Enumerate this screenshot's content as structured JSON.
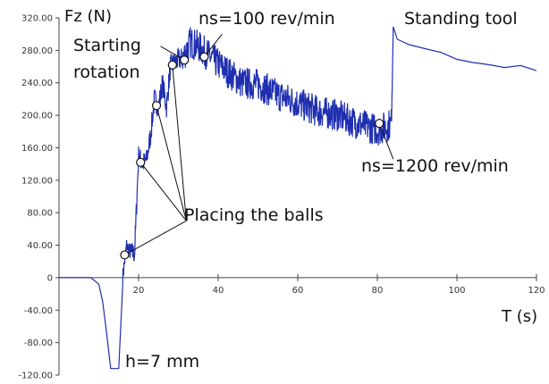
{
  "chart_data": {
    "type": "line",
    "ylabel": "Fz (N)",
    "xlabel": "T (s)",
    "xlim": [
      0,
      120
    ],
    "ylim": [
      -120,
      320
    ],
    "x_ticks": [
      20,
      40,
      60,
      80,
      100,
      120
    ],
    "y_ticks": [
      -120,
      -80,
      -40,
      0,
      40,
      80,
      120,
      160,
      200,
      240,
      280,
      320
    ],
    "y_tick_labels": [
      "-120.00",
      "-80.00",
      "-40.00",
      "0",
      "40.00",
      "80.00",
      "120.00",
      "160.00",
      "200.00",
      "240.00",
      "280.00",
      "320.00"
    ],
    "grid": false,
    "series": [
      {
        "color": "#1f2fb0",
        "x": [
          0,
          8,
          10,
          11,
          12,
          13,
          14,
          15,
          16,
          17,
          18,
          19,
          20,
          21,
          22,
          23,
          24,
          25,
          26,
          27,
          28,
          29,
          30,
          31,
          33,
          35,
          38,
          42,
          46,
          50,
          55,
          60,
          65,
          70,
          75,
          80,
          82,
          83.5,
          84,
          85,
          88,
          92,
          96,
          100,
          104,
          108,
          112,
          116,
          120
        ],
        "y": [
          0,
          0,
          -8,
          -30,
          -70,
          -112,
          -112,
          -112,
          0,
          40,
          30,
          30,
          150,
          140,
          145,
          175,
          220,
          210,
          240,
          210,
          260,
          265,
          268,
          270,
          290,
          285,
          272,
          255,
          240,
          238,
          225,
          215,
          205,
          200,
          190,
          182,
          185,
          190,
          310,
          295,
          288,
          282,
          276,
          270,
          265,
          262,
          260,
          260,
          255
        ]
      }
    ],
    "annotations": [
      {
        "text": "Starting",
        "x": 19,
        "y": 295
      },
      {
        "text": "rotation",
        "x": 19,
        "y": 256
      },
      {
        "text": "ns=100 rev/min",
        "x": 41,
        "y": 306
      },
      {
        "text": "Standing tool",
        "x": 86,
        "y": 308
      },
      {
        "text": "Placing the balls",
        "x": 32,
        "y": 76
      },
      {
        "text": "ns=1200 rev/min",
        "x": 85,
        "y": 140
      },
      {
        "text": "h=7 mm",
        "x": 17,
        "y": -103
      }
    ],
    "markers": [
      {
        "x": 16.5,
        "y": 28
      },
      {
        "x": 20.5,
        "y": 142
      },
      {
        "x": 24.5,
        "y": 212
      },
      {
        "x": 28.5,
        "y": 262
      },
      {
        "x": 31.5,
        "y": 268
      },
      {
        "x": 36.5,
        "y": 272
      },
      {
        "x": 80.5,
        "y": 190
      }
    ]
  }
}
